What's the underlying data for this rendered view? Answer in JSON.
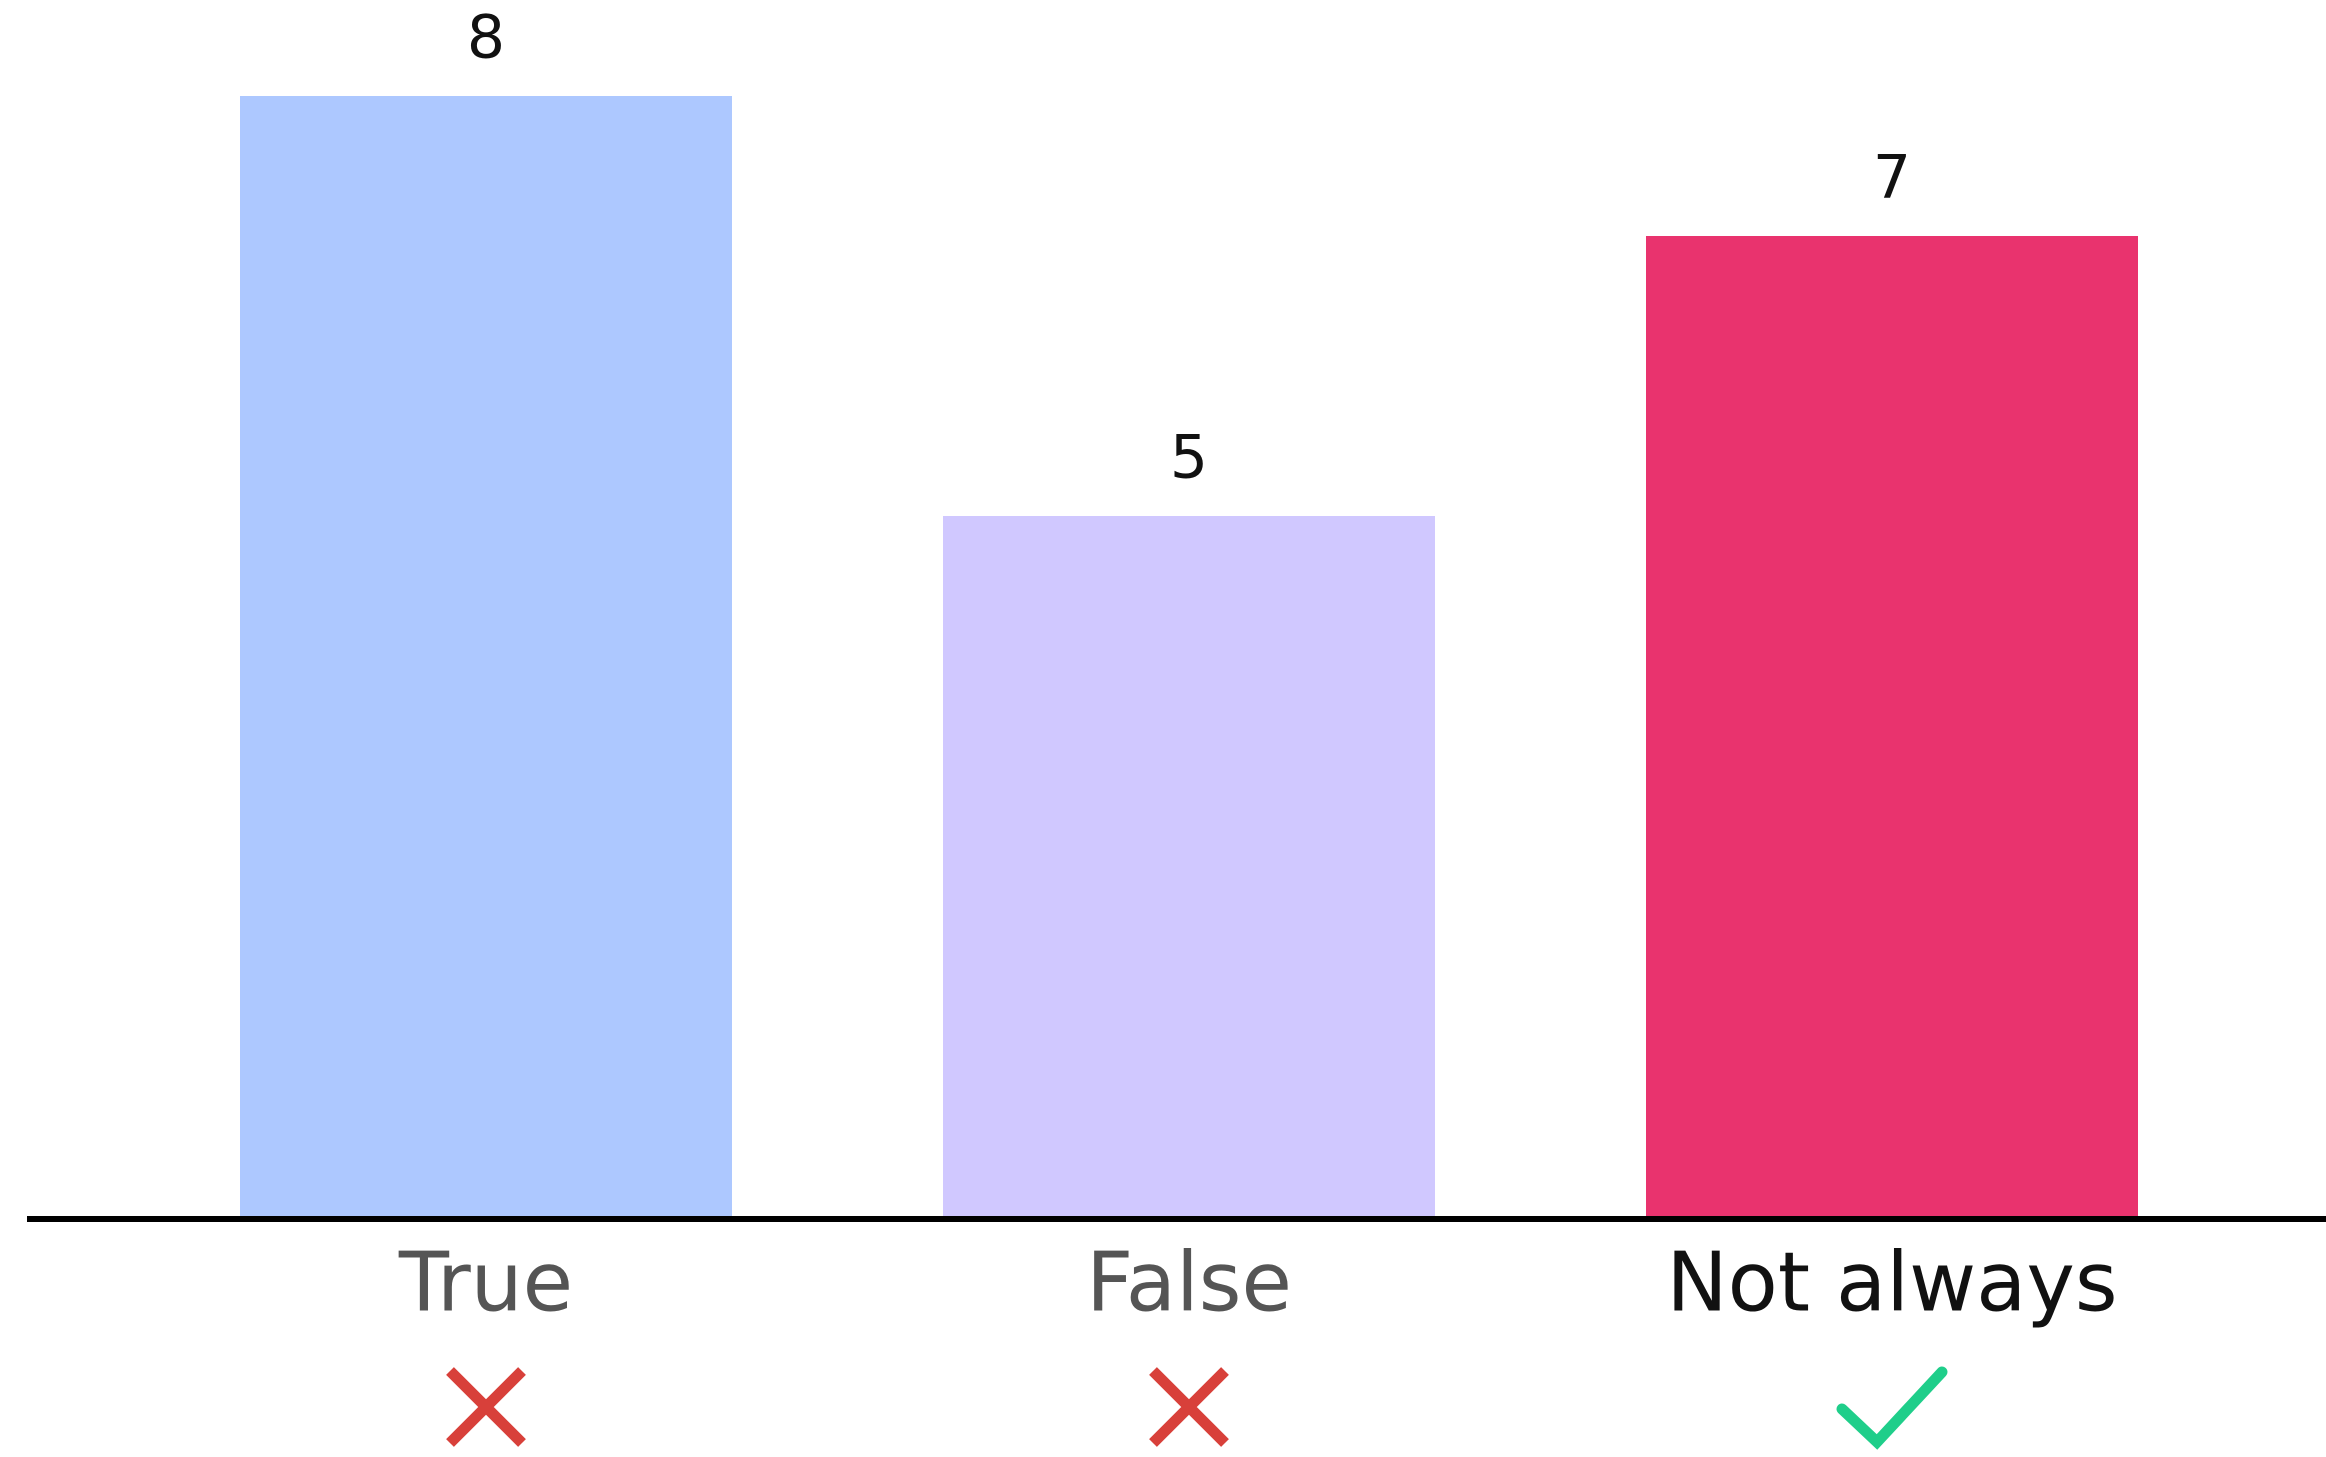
{
  "chart_data": {
    "type": "bar",
    "categories": [
      "True",
      "False",
      "Not always"
    ],
    "values": [
      8,
      5,
      7
    ],
    "colors": [
      "#adc8ff",
      "#d0c8ff",
      "#e9336e"
    ],
    "correct": [
      false,
      false,
      true
    ]
  }
}
